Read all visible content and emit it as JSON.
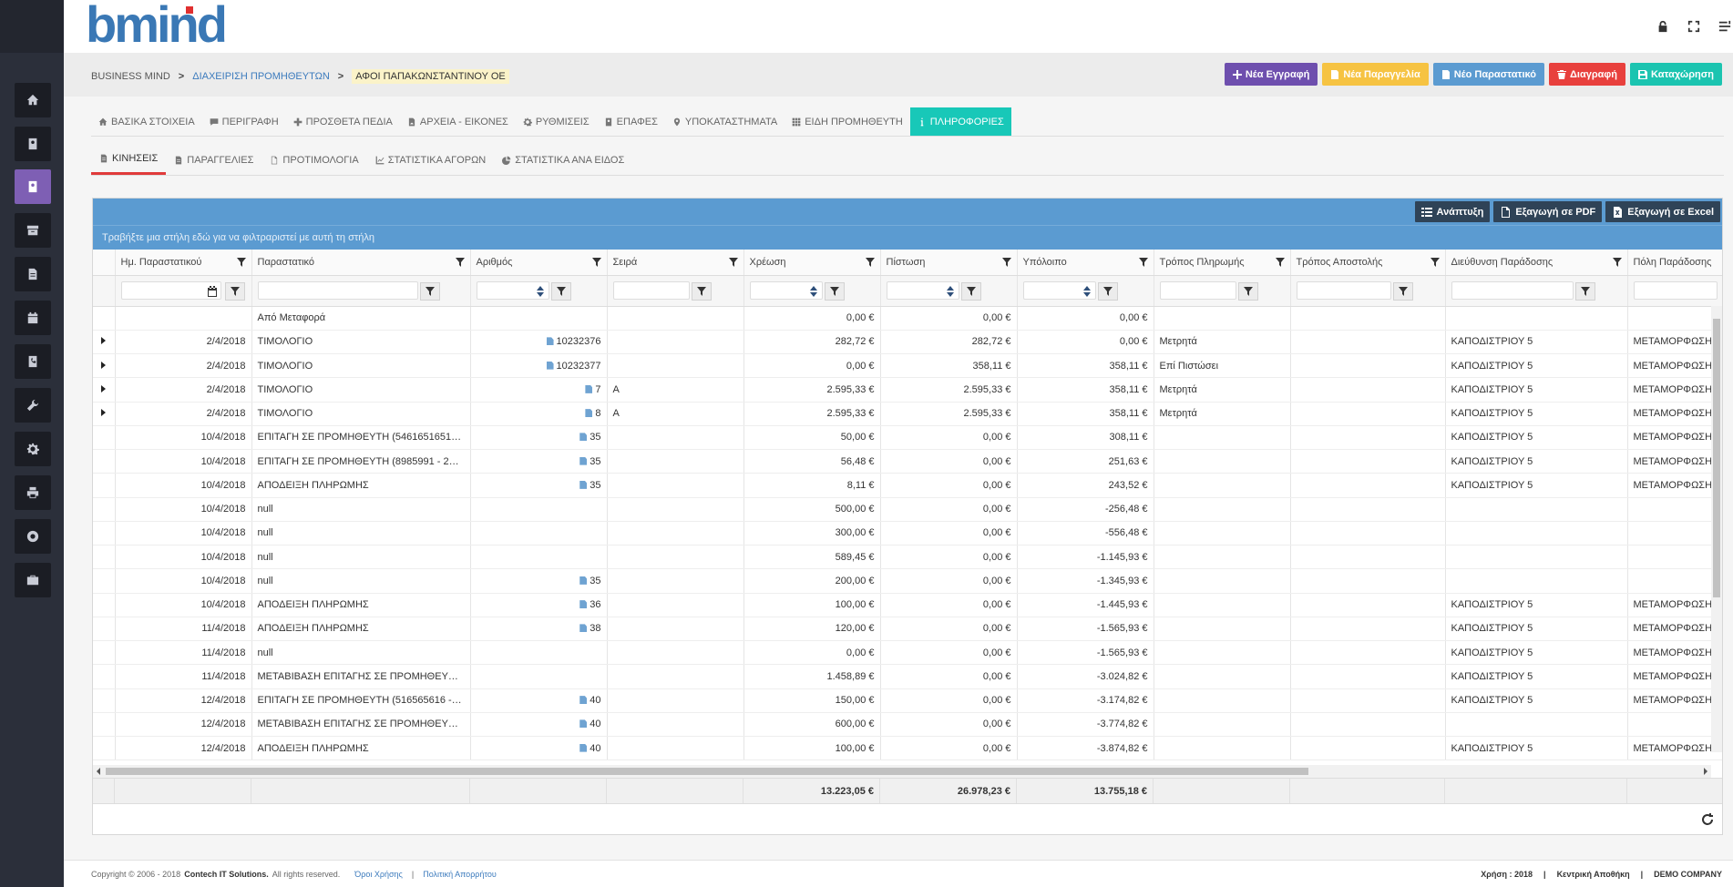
{
  "logo": {
    "brand": "bmind"
  },
  "breadcrumb": {
    "items": [
      "BUSINESS MIND",
      "ΔΙΑΧΕΙΡΙΣΗ ΠΡΟΜΗΘΕΥΤΩΝ",
      "ΑΦΟΙ ΠΑΠΑΚΩΝΣΤΑΝΤΙΝΟΥ ΟΕ"
    ],
    "separator": ">"
  },
  "actions": {
    "new_entry": "Νέα Εγγραφή",
    "new_order": "Νέα Παραγγελία",
    "new_document": "Νέο Παραστατικό",
    "delete": "Διαγραφή",
    "save": "Καταχώρηση"
  },
  "colors": {
    "new_entry": "#6e4fae",
    "new_order": "#f6c342",
    "new_document": "#5b9bd1",
    "delete": "#e8403d",
    "save": "#1bc4b0"
  },
  "tabs": [
    "ΒΑΣΙΚΑ ΣΤΟΙΧΕΙΑ",
    "ΠΕΡΙΓΡΑΦΗ",
    "ΠΡΟΣΘΕΤΑ ΠΕΔΙΑ",
    "ΑΡΧΕΙΑ - ΕΙΚΟΝΕΣ",
    "ΡΥΘΜΙΣΕΙΣ",
    "ΕΠΑΦΕΣ",
    "ΥΠΟΚΑΤΑΣΤΗΜΑΤΑ",
    "ΕΙΔΗ ΠΡΟΜΗΘΕΥΤΗ",
    "ΠΛΗΡΟΦΟΡΙΕΣ"
  ],
  "subtabs": [
    "ΚΙΝΗΣΕΙΣ",
    "ΠΑΡΑΓΓΕΛΙΕΣ",
    "ΠΡΟΤΙΜΟΛΟΓΙΑ",
    "ΣΤΑΤΙΣΤΙΚΑ ΑΓΟΡΩΝ",
    "ΣΤΑΤΙΣΤΙΚΑ ΑΝΑ ΕΙΔΟΣ"
  ],
  "grid": {
    "toolbar": {
      "expand": "Ανάπτυξη",
      "pdf": "Εξαγωγή σε PDF",
      "excel": "Εξαγωγή σε Excel"
    },
    "group_hint": "Τραβήξτε μια στήλη εδώ για να φιλτραριστεί με αυτή τη στήλη",
    "columns": [
      "Ημ. Παραστατικού",
      "Παραστατικό",
      "Αριθμός",
      "Σειρά",
      "Χρέωση",
      "Πίστωση",
      "Υπόλοιπο",
      "Τρόπος Πληρωμής",
      "Τρόπος Αποστολής",
      "Διεύθυνση Παράδοσης",
      "Πόλη Παράδοσης"
    ],
    "rows": [
      {
        "date": "",
        "doc": "Από Μεταφορά",
        "doc_link": false,
        "num": "",
        "series": "",
        "debit": "0,00 €",
        "credit": "0,00 €",
        "balance": "0,00 €",
        "payment": "",
        "shipping": "",
        "address": "",
        "city": "",
        "expandable": false
      },
      {
        "date": "2/4/2018",
        "doc": "ΤΙΜΟΛΟΓΙΟ",
        "doc_link": false,
        "num": "10232376",
        "series": "",
        "debit": "282,72 €",
        "credit": "282,72 €",
        "balance": "0,00 €",
        "payment": "Μετρητά",
        "shipping": "",
        "address": "ΚΑΠΟΔΙΣΤΡΙΟΥ 5",
        "city": "ΜΕΤΑΜΟΡΦΩΣΗ",
        "expandable": true
      },
      {
        "date": "2/4/2018",
        "doc": "ΤΙΜΟΛΟΓΙΟ",
        "doc_link": false,
        "num": "10232377",
        "series": "",
        "debit": "0,00 €",
        "credit": "358,11 €",
        "balance": "358,11 €",
        "payment": "Επί Πιστώσει",
        "shipping": "",
        "address": "ΚΑΠΟΔΙΣΤΡΙΟΥ 5",
        "city": "ΜΕΤΑΜΟΡΦΩΣΗ",
        "expandable": true
      },
      {
        "date": "2/4/2018",
        "doc": "ΤΙΜΟΛΟΓΙΟ",
        "doc_link": false,
        "num": "7",
        "series": "Α",
        "debit": "2.595,33 €",
        "credit": "2.595,33 €",
        "balance": "358,11 €",
        "payment": "Μετρητά",
        "shipping": "",
        "address": "ΚΑΠΟΔΙΣΤΡΙΟΥ 5",
        "city": "ΜΕΤΑΜΟΡΦΩΣΗ",
        "expandable": true
      },
      {
        "date": "2/4/2018",
        "doc": "ΤΙΜΟΛΟΓΙΟ",
        "doc_link": false,
        "num": "8",
        "series": "Α",
        "debit": "2.595,33 €",
        "credit": "2.595,33 €",
        "balance": "358,11 €",
        "payment": "Μετρητά",
        "shipping": "",
        "address": "ΚΑΠΟΔΙΣΤΡΙΟΥ 5",
        "city": "ΜΕΤΑΜΟΡΦΩΣΗ",
        "expandable": true
      },
      {
        "date": "10/4/2018",
        "doc": "ΕΠΙΤΑΓΗ ΣΕ ΠΡΟΜΗΘΕΥΤΗ (546165165165 ...",
        "doc_link": true,
        "num": "35",
        "series": "",
        "debit": "50,00 €",
        "credit": "0,00 €",
        "balance": "308,11 €",
        "payment": "",
        "shipping": "",
        "address": "ΚΑΠΟΔΙΣΤΡΙΟΥ 5",
        "city": "ΜΕΤΑΜΟΡΦΩΣΗ",
        "expandable": false
      },
      {
        "date": "10/4/2018",
        "doc": "ΕΠΙΤΑΓΗ ΣΕ ΠΡΟΜΗΘΕΥΤΗ (8985991 - 28/0...",
        "doc_link": true,
        "num": "35",
        "series": "",
        "debit": "56,48 €",
        "credit": "0,00 €",
        "balance": "251,63 €",
        "payment": "",
        "shipping": "",
        "address": "ΚΑΠΟΔΙΣΤΡΙΟΥ 5",
        "city": "ΜΕΤΑΜΟΡΦΩΣΗ",
        "expandable": false
      },
      {
        "date": "10/4/2018",
        "doc": "ΑΠΟΔΕΙΞΗ ΠΛΗΡΩΜΗΣ",
        "doc_link": false,
        "num": "35",
        "series": "",
        "debit": "8,11 €",
        "credit": "0,00 €",
        "balance": "243,52 €",
        "payment": "",
        "shipping": "",
        "address": "ΚΑΠΟΔΙΣΤΡΙΟΥ 5",
        "city": "ΜΕΤΑΜΟΡΦΩΣΗ",
        "expandable": false
      },
      {
        "date": "10/4/2018",
        "doc": "null",
        "doc_link": true,
        "num": "",
        "series": "",
        "debit": "500,00 €",
        "credit": "0,00 €",
        "balance": "-256,48 €",
        "payment": "",
        "shipping": "",
        "address": "",
        "city": "",
        "expandable": false
      },
      {
        "date": "10/4/2018",
        "doc": "null",
        "doc_link": true,
        "num": "",
        "series": "",
        "debit": "300,00 €",
        "credit": "0,00 €",
        "balance": "-556,48 €",
        "payment": "",
        "shipping": "",
        "address": "",
        "city": "",
        "expandable": false
      },
      {
        "date": "10/4/2018",
        "doc": "null",
        "doc_link": true,
        "num": "",
        "series": "",
        "debit": "589,45 €",
        "credit": "0,00 €",
        "balance": "-1.145,93 €",
        "payment": "",
        "shipping": "",
        "address": "",
        "city": "",
        "expandable": false
      },
      {
        "date": "10/4/2018",
        "doc": "null",
        "doc_link": true,
        "num": "35",
        "series": "",
        "debit": "200,00 €",
        "credit": "0,00 €",
        "balance": "-1.345,93 €",
        "payment": "",
        "shipping": "",
        "address": "",
        "city": "",
        "expandable": false
      },
      {
        "date": "10/4/2018",
        "doc": "ΑΠΟΔΕΙΞΗ ΠΛΗΡΩΜΗΣ",
        "doc_link": false,
        "num": "36",
        "series": "",
        "debit": "100,00 €",
        "credit": "0,00 €",
        "balance": "-1.445,93 €",
        "payment": "",
        "shipping": "",
        "address": "ΚΑΠΟΔΙΣΤΡΙΟΥ 5",
        "city": "ΜΕΤΑΜΟΡΦΩΣΗ",
        "expandable": false
      },
      {
        "date": "11/4/2018",
        "doc": "ΑΠΟΔΕΙΞΗ ΠΛΗΡΩΜΗΣ",
        "doc_link": false,
        "num": "38",
        "series": "",
        "debit": "120,00 €",
        "credit": "0,00 €",
        "balance": "-1.565,93 €",
        "payment": "",
        "shipping": "",
        "address": "ΚΑΠΟΔΙΣΤΡΙΟΥ 5",
        "city": "ΜΕΤΑΜΟΡΦΩΣΗ",
        "expandable": false
      },
      {
        "date": "11/4/2018",
        "doc": "null",
        "doc_link": true,
        "num": "",
        "series": "",
        "debit": "0,00 €",
        "credit": "0,00 €",
        "balance": "-1.565,93 €",
        "payment": "",
        "shipping": "",
        "address": "ΚΑΠΟΔΙΣΤΡΙΟΥ 5",
        "city": "ΜΕΤΑΜΟΡΦΩΣΗ",
        "expandable": false
      },
      {
        "date": "11/4/2018",
        "doc": "ΜΕΤΑΒΙΒΑΣΗ ΕΠΙΤΑΓΗΣ ΣΕ ΠΡΟΜΗΘΕΥΤΗ (...",
        "doc_link": true,
        "num": "",
        "series": "",
        "debit": "1.458,89 €",
        "credit": "0,00 €",
        "balance": "-3.024,82 €",
        "payment": "",
        "shipping": "",
        "address": "ΚΑΠΟΔΙΣΤΡΙΟΥ 5",
        "city": "ΜΕΤΑΜΟΡΦΩΣΗ",
        "expandable": false
      },
      {
        "date": "12/4/2018",
        "doc": "ΕΠΙΤΑΓΗ ΣΕ ΠΡΟΜΗΘΕΥΤΗ (516565616 - 1...",
        "doc_link": true,
        "num": "40",
        "series": "",
        "debit": "150,00 €",
        "credit": "0,00 €",
        "balance": "-3.174,82 €",
        "payment": "",
        "shipping": "",
        "address": "ΚΑΠΟΔΙΣΤΡΙΟΥ 5",
        "city": "ΜΕΤΑΜΟΡΦΩΣΗ",
        "expandable": false
      },
      {
        "date": "12/4/2018",
        "doc": "ΜΕΤΑΒΙΒΑΣΗ ΕΠΙΤΑΓΗΣ ΣΕ ΠΡΟΜΗΘΕΥΤΗ (...",
        "doc_link": true,
        "num": "40",
        "series": "",
        "debit": "600,00 €",
        "credit": "0,00 €",
        "balance": "-3.774,82 €",
        "payment": "",
        "shipping": "",
        "address": "",
        "city": "",
        "expandable": false
      },
      {
        "date": "12/4/2018",
        "doc": "ΑΠΟΔΕΙΞΗ ΠΛΗΡΩΜΗΣ",
        "doc_link": false,
        "num": "40",
        "series": "",
        "debit": "100,00 €",
        "credit": "0,00 €",
        "balance": "-3.874,82 €",
        "payment": "",
        "shipping": "",
        "address": "ΚΑΠΟΔΙΣΤΡΙΟΥ 5",
        "city": "ΜΕΤΑΜΟΡΦΩΣΗ",
        "expandable": false
      }
    ],
    "totals": {
      "debit": "13.223,05 €",
      "credit": "26.978,23 €",
      "balance": "13.755,18 €"
    }
  },
  "footer": {
    "copyright_prefix": "Copyright © 2006 - 2018",
    "company": "Contech IT Solutions.",
    "rights": "All rights reserved.",
    "terms": "Όροι Χρήσης",
    "privacy": "Πολιτική Απορρήτου",
    "sep": "|",
    "year": "Χρήση : 2018",
    "warehouse": "Κεντρική Αποθήκη",
    "company_name": "DEMO COMPANY"
  },
  "icons": {
    "sidebar": [
      "home-icon",
      "contacts-icon",
      "supplier-icon",
      "archive-icon",
      "document-icon",
      "calendar-icon",
      "phone-book-icon",
      "wrench-icon",
      "gear-icon",
      "print-icon",
      "support-icon",
      "briefcase-icon"
    ],
    "header": [
      "lock-icon",
      "fullscreen-icon",
      "menu-icon"
    ]
  }
}
